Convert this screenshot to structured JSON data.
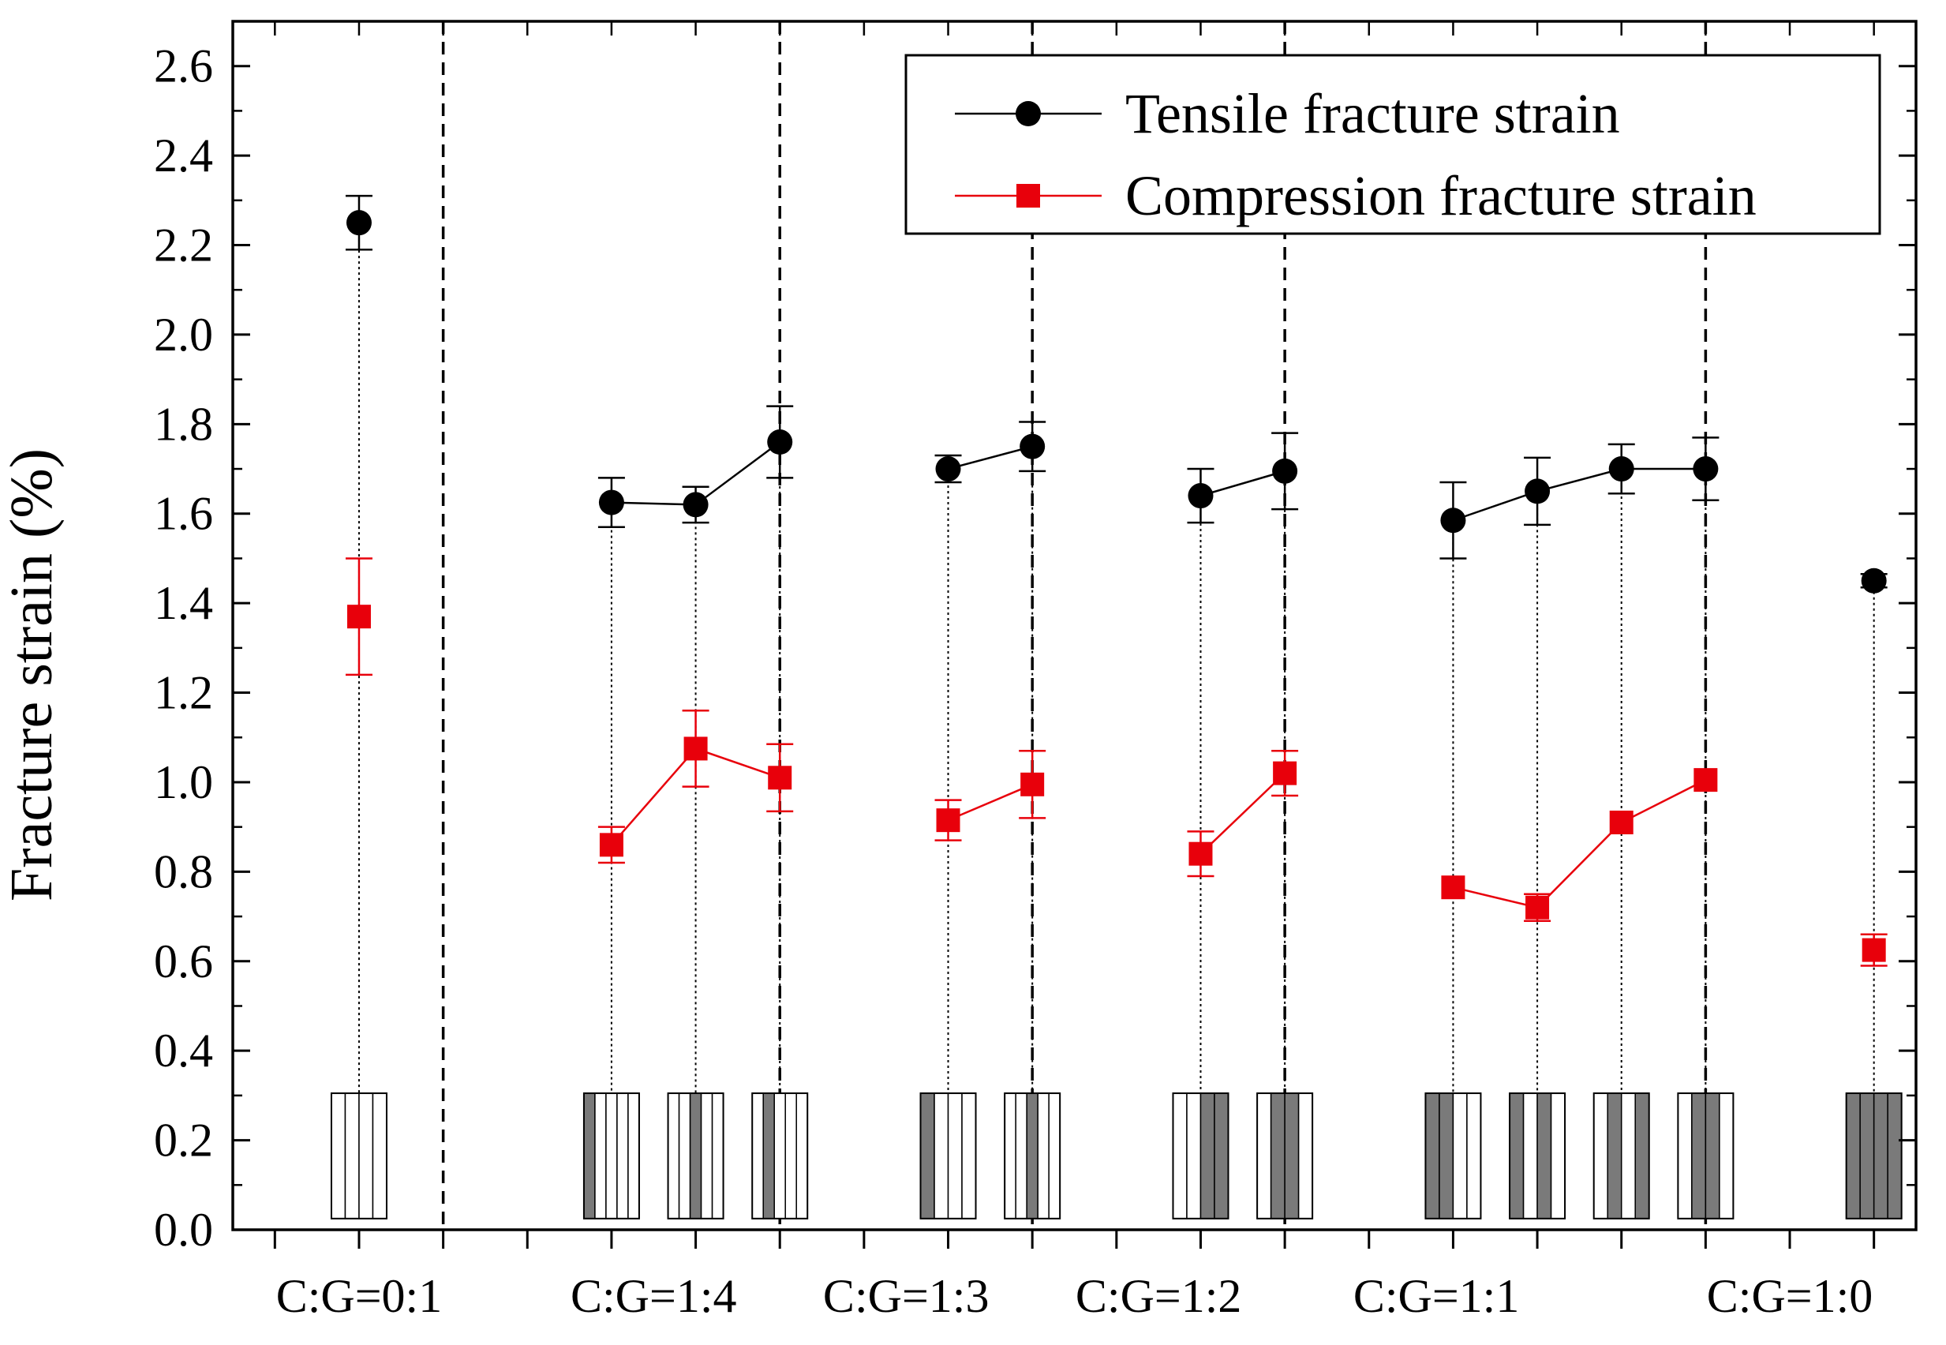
{
  "chart_data": {
    "type": "scatter",
    "title": "",
    "xlabel": "",
    "ylabel": "Fracture strain (%)",
    "ylim": [
      0,
      2.7
    ],
    "yticks": [
      0.0,
      0.2,
      0.4,
      0.6,
      0.8,
      1.0,
      1.2,
      1.4,
      1.6,
      1.8,
      2.0,
      2.2,
      2.4,
      2.6
    ],
    "ytick_labels": [
      "0.0",
      "0.2",
      "0.4",
      "0.6",
      "0.8",
      "1.0",
      "1.2",
      "1.4",
      "1.6",
      "1.8",
      "2.0",
      "2.2",
      "2.4",
      "2.6"
    ],
    "xlim": [
      0,
      20
    ],
    "group_labels": [
      {
        "label": "C:G=0:1",
        "x": 1.5
      },
      {
        "label": "C:G=1:4",
        "x": 5.0
      },
      {
        "label": "C:G=1:3",
        "x": 8.0
      },
      {
        "label": "C:G=1:2",
        "x": 11.0
      },
      {
        "label": "C:G=1:1",
        "x": 14.3
      },
      {
        "label": "C:G=1:0",
        "x": 18.5
      }
    ],
    "group_separators": [
      2.5,
      6.5,
      9.5,
      12.5,
      17.5
    ],
    "positions": [
      1.5,
      4.5,
      5.5,
      6.5,
      8.5,
      9.5,
      11.5,
      12.5,
      14.5,
      15.5,
      16.5,
      17.5,
      19.5
    ],
    "series": [
      {
        "name": "Tensile fracture strain",
        "color": "#000000",
        "marker": "circle",
        "segments": [
          [
            0
          ],
          [
            1,
            2,
            3
          ],
          [
            4,
            5
          ],
          [
            6,
            7
          ],
          [
            8,
            9,
            10,
            11
          ],
          [
            12
          ]
        ],
        "values": [
          2.25,
          1.625,
          1.62,
          1.76,
          1.7,
          1.75,
          1.64,
          1.695,
          1.585,
          1.65,
          1.7,
          1.7,
          1.45
        ],
        "errors": [
          0.06,
          0.055,
          0.04,
          0.08,
          0.03,
          0.055,
          0.06,
          0.085,
          0.085,
          0.075,
          0.055,
          0.07,
          0.015
        ]
      },
      {
        "name": "Compression fracture strain",
        "color": "#e8000b",
        "marker": "square",
        "segments": [
          [
            0
          ],
          [
            1,
            2,
            3
          ],
          [
            4,
            5
          ],
          [
            6,
            7
          ],
          [
            8,
            9,
            10,
            11
          ],
          [
            12
          ]
        ],
        "values": [
          1.37,
          0.86,
          1.075,
          1.01,
          0.915,
          0.995,
          0.84,
          1.02,
          0.765,
          0.72,
          0.91,
          1.005,
          0.625
        ],
        "errors": [
          0.13,
          0.04,
          0.085,
          0.075,
          0.045,
          0.075,
          0.05,
          0.05,
          0.0,
          0.03,
          0.0,
          0.0,
          0.035
        ]
      }
    ],
    "layup_icons": [
      {
        "x": 1.5,
        "stripes": [
          "w",
          "w",
          "w",
          "w"
        ]
      },
      {
        "x": 4.5,
        "stripes": [
          "d",
          "w",
          "w",
          "w",
          "w"
        ]
      },
      {
        "x": 5.5,
        "stripes": [
          "w",
          "w",
          "d",
          "w",
          "w"
        ]
      },
      {
        "x": 6.5,
        "stripes": [
          "w",
          "d",
          "w",
          "w",
          "w"
        ]
      },
      {
        "x": 8.5,
        "stripes": [
          "d",
          "w",
          "w",
          "w"
        ]
      },
      {
        "x": 9.5,
        "stripes": [
          "w",
          "w",
          "d",
          "w",
          "w"
        ]
      },
      {
        "x": 11.5,
        "stripes": [
          "w",
          "w",
          "d",
          "d"
        ]
      },
      {
        "x": 12.5,
        "stripes": [
          "w",
          "d",
          "d",
          "w"
        ]
      },
      {
        "x": 14.5,
        "stripes": [
          "d",
          "d",
          "w",
          "w"
        ]
      },
      {
        "x": 15.5,
        "stripes": [
          "d",
          "w",
          "d",
          "w"
        ]
      },
      {
        "x": 16.5,
        "stripes": [
          "w",
          "d",
          "w",
          "d"
        ]
      },
      {
        "x": 17.5,
        "stripes": [
          "w",
          "d",
          "d",
          "w"
        ]
      },
      {
        "x": 19.5,
        "stripes": [
          "d",
          "d",
          "d",
          "d"
        ]
      }
    ],
    "legend": {
      "position": "top-right",
      "entries": [
        "Tensile fracture strain",
        "Compression fracture strain"
      ]
    },
    "grid": false
  }
}
